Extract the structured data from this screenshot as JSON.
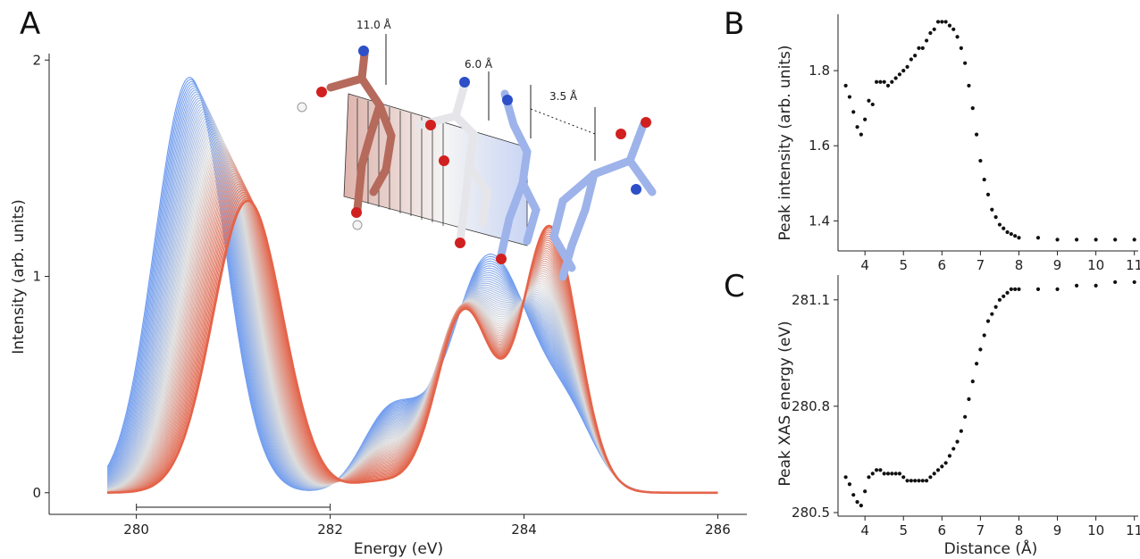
{
  "colors": {
    "start": "#6f9cf0",
    "mid": "#dcdcdc",
    "end": "#e4644a",
    "point": "#111111"
  },
  "panels": {
    "a": "A",
    "b": "B",
    "c": "C"
  },
  "inset": {
    "description_icon": "molecular-structure-illustration",
    "distance_labels": [
      "11.0 Å",
      "6.0 Å",
      "3.5 Å"
    ]
  },
  "chart_data": [
    {
      "id": "A",
      "type": "line",
      "xlabel": "Energy (eV)",
      "ylabel": "Intensity (arb. units)",
      "xlim": [
        279.1,
        286.3
      ],
      "ylim": [
        -0.1,
        2.03
      ],
      "xticks": [
        "280",
        "282",
        "284",
        "286"
      ],
      "yticks": [
        "0",
        "1",
        "2"
      ],
      "grid": false,
      "series_description": "Family of XAS spectra colored from blue (3.5 Å) to red (11.0 Å)",
      "scale_bar": [
        280,
        282
      ],
      "peaks": {
        "first_peak_energy_range": [
          280.55,
          281.15
        ],
        "first_peak_height_range": [
          1.92,
          1.35
        ],
        "second_region_energies": [
          282.6,
          283.1,
          283.55,
          283.95,
          284.45
        ]
      }
    },
    {
      "id": "B",
      "type": "scatter",
      "xlabel": "",
      "ylabel": "Peak intensity (arb. units)",
      "xlim": [
        3.3,
        11.1
      ],
      "ylim": [
        1.32,
        1.95
      ],
      "xticks": [
        "4",
        "5",
        "6",
        "7",
        "8",
        "9",
        "10",
        "11"
      ],
      "yticks": [
        "1.4",
        "1.6",
        "1.8"
      ],
      "grid": false,
      "x": [
        3.5,
        3.6,
        3.7,
        3.8,
        3.9,
        4.0,
        4.1,
        4.2,
        4.3,
        4.4,
        4.5,
        4.6,
        4.7,
        4.8,
        4.9,
        5.0,
        5.1,
        5.2,
        5.3,
        5.4,
        5.5,
        5.6,
        5.7,
        5.8,
        5.9,
        6.0,
        6.1,
        6.2,
        6.3,
        6.4,
        6.5,
        6.6,
        6.7,
        6.8,
        6.9,
        7.0,
        7.1,
        7.2,
        7.3,
        7.4,
        7.5,
        7.6,
        7.7,
        7.8,
        7.9,
        8.0,
        8.5,
        9.0,
        9.5,
        10.0,
        10.5,
        11.0
      ],
      "y": [
        1.76,
        1.73,
        1.69,
        1.65,
        1.63,
        1.67,
        1.72,
        1.71,
        1.77,
        1.77,
        1.77,
        1.76,
        1.77,
        1.78,
        1.79,
        1.8,
        1.81,
        1.83,
        1.84,
        1.86,
        1.86,
        1.88,
        1.9,
        1.91,
        1.93,
        1.93,
        1.93,
        1.92,
        1.91,
        1.89,
        1.86,
        1.82,
        1.76,
        1.7,
        1.63,
        1.56,
        1.51,
        1.47,
        1.43,
        1.41,
        1.39,
        1.38,
        1.37,
        1.365,
        1.36,
        1.355,
        1.355,
        1.35,
        1.35,
        1.35,
        1.35,
        1.35
      ]
    },
    {
      "id": "C",
      "type": "scatter",
      "xlabel": "Distance (Å)",
      "ylabel": "Peak XAS energy (eV)",
      "xlim": [
        3.3,
        11.1
      ],
      "ylim": [
        280.49,
        281.17
      ],
      "xticks": [
        "4",
        "5",
        "6",
        "7",
        "8",
        "9",
        "10",
        "11"
      ],
      "yticks": [
        "280.5",
        "280.8",
        "281.1"
      ],
      "grid": false,
      "x": [
        3.5,
        3.6,
        3.7,
        3.8,
        3.9,
        4.0,
        4.1,
        4.2,
        4.3,
        4.4,
        4.5,
        4.6,
        4.7,
        4.8,
        4.9,
        5.0,
        5.1,
        5.2,
        5.3,
        5.4,
        5.5,
        5.6,
        5.7,
        5.8,
        5.9,
        6.0,
        6.1,
        6.2,
        6.3,
        6.4,
        6.5,
        6.6,
        6.7,
        6.8,
        6.9,
        7.0,
        7.1,
        7.2,
        7.3,
        7.4,
        7.5,
        7.6,
        7.7,
        7.8,
        7.9,
        8.0,
        8.5,
        9.0,
        9.5,
        10.0,
        10.5,
        11.0
      ],
      "y": [
        280.6,
        280.58,
        280.55,
        280.53,
        280.52,
        280.56,
        280.6,
        280.61,
        280.62,
        280.62,
        280.61,
        280.61,
        280.61,
        280.61,
        280.61,
        280.6,
        280.59,
        280.59,
        280.59,
        280.59,
        280.59,
        280.59,
        280.6,
        280.61,
        280.62,
        280.63,
        280.64,
        280.66,
        280.68,
        280.7,
        280.73,
        280.77,
        280.82,
        280.87,
        280.92,
        280.96,
        281.0,
        281.04,
        281.06,
        281.08,
        281.1,
        281.11,
        281.12,
        281.13,
        281.13,
        281.13,
        281.13,
        281.13,
        281.14,
        281.14,
        281.15,
        281.15
      ]
    }
  ]
}
